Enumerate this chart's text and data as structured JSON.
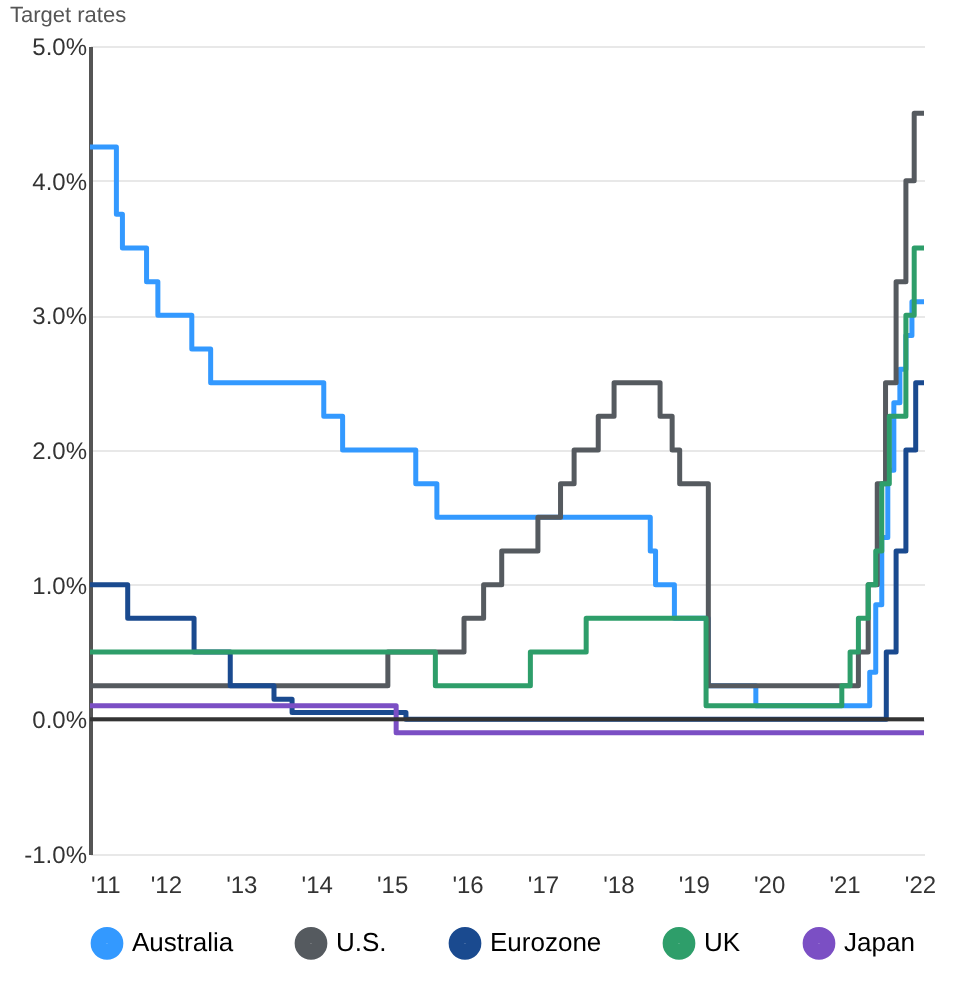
{
  "chart_data": {
    "type": "step",
    "title": "Target rates",
    "xlim": [
      2011,
      2022.06
    ],
    "ylim": [
      -1,
      5
    ],
    "xticks": [
      {
        "value": 2011,
        "label": "'11"
      },
      {
        "value": 2012,
        "label": "'12"
      },
      {
        "value": 2013,
        "label": "'13"
      },
      {
        "value": 2014,
        "label": "'14"
      },
      {
        "value": 2015,
        "label": "'15"
      },
      {
        "value": 2016,
        "label": "'16"
      },
      {
        "value": 2017,
        "label": "'17"
      },
      {
        "value": 2018,
        "label": "'18"
      },
      {
        "value": 2019,
        "label": "'19"
      },
      {
        "value": 2020,
        "label": "'20"
      },
      {
        "value": 2021,
        "label": "'21"
      },
      {
        "value": 2022,
        "label": "'22"
      }
    ],
    "yticks": [
      {
        "value": -1,
        "label": "-1.0%"
      },
      {
        "value": 0,
        "label": "0.0%"
      },
      {
        "value": 1,
        "label": "1.0%"
      },
      {
        "value": 2,
        "label": "2.0%"
      },
      {
        "value": 3,
        "label": "3.0%"
      },
      {
        "value": 4,
        "label": "4.0%"
      },
      {
        "value": 5,
        "label": "5.0%"
      }
    ],
    "grid": "y",
    "legend": "bottom",
    "line_style": "solid",
    "marker": "none",
    "ref_lines": [
      {
        "axis": "y",
        "value": 0,
        "label": null,
        "color": "#333333"
      }
    ],
    "series": [
      {
        "name": "Australia",
        "color": "#3399ff",
        "x": [
          2011,
          2011.35,
          2011.43,
          2011.75,
          2011.9,
          2012.35,
          2012.6,
          2014.1,
          2014.35,
          2015.32,
          2015.6,
          2018.43,
          2018.5,
          2018.75,
          2019.2,
          2019.83,
          2021.34,
          2021.42,
          2021.5,
          2021.58,
          2021.66,
          2021.74,
          2021.82,
          2021.9,
          2022.06
        ],
        "values": [
          4.25,
          3.75,
          3.5,
          3.25,
          3.0,
          2.75,
          2.5,
          2.25,
          2.0,
          1.75,
          1.5,
          1.25,
          1.0,
          0.75,
          0.25,
          0.1,
          0.35,
          0.85,
          1.35,
          1.85,
          2.35,
          2.6,
          2.85,
          3.1,
          3.1
        ]
      },
      {
        "name": "U.S.",
        "color": "#555a5f",
        "x": [
          2011,
          2014.95,
          2015.96,
          2016.22,
          2016.46,
          2016.94,
          2017.24,
          2017.42,
          2017.74,
          2017.95,
          2018.56,
          2018.72,
          2018.82,
          2019.2,
          2021.19,
          2021.32,
          2021.44,
          2021.55,
          2021.69,
          2021.82,
          2021.93,
          2022.06
        ],
        "values": [
          0.25,
          0.5,
          0.75,
          1.0,
          1.25,
          1.5,
          1.75,
          2.0,
          2.25,
          2.5,
          2.25,
          2.0,
          1.75,
          0.25,
          0.5,
          1.0,
          1.75,
          2.5,
          3.25,
          4.0,
          4.5,
          4.5
        ]
      },
      {
        "name": "Eurozone",
        "color": "#1a4a8f",
        "x": [
          2011,
          2011.5,
          2012.38,
          2012.86,
          2013.44,
          2013.68,
          2015.19,
          2021.56,
          2021.69,
          2021.82,
          2021.95,
          2022.06
        ],
        "values": [
          1.0,
          0.75,
          0.5,
          0.25,
          0.15,
          0.05,
          0.0,
          0.5,
          1.25,
          2.0,
          2.5,
          2.5
        ]
      },
      {
        "name": "UK",
        "color": "#2e9e6a",
        "x": [
          2011,
          2015.58,
          2016.84,
          2017.58,
          2019.17,
          2020.97,
          2021.08,
          2021.19,
          2021.32,
          2021.42,
          2021.5,
          2021.6,
          2021.82,
          2021.93,
          2022.06
        ],
        "values": [
          0.5,
          0.25,
          0.5,
          0.75,
          0.1,
          0.25,
          0.5,
          0.75,
          1.0,
          1.25,
          1.75,
          2.25,
          3.0,
          3.5,
          3.5
        ]
      },
      {
        "name": "Japan",
        "color": "#7b4fc4",
        "x": [
          2011,
          2015.06,
          2022.06
        ],
        "values": [
          0.1,
          -0.1,
          -0.1
        ]
      }
    ]
  }
}
